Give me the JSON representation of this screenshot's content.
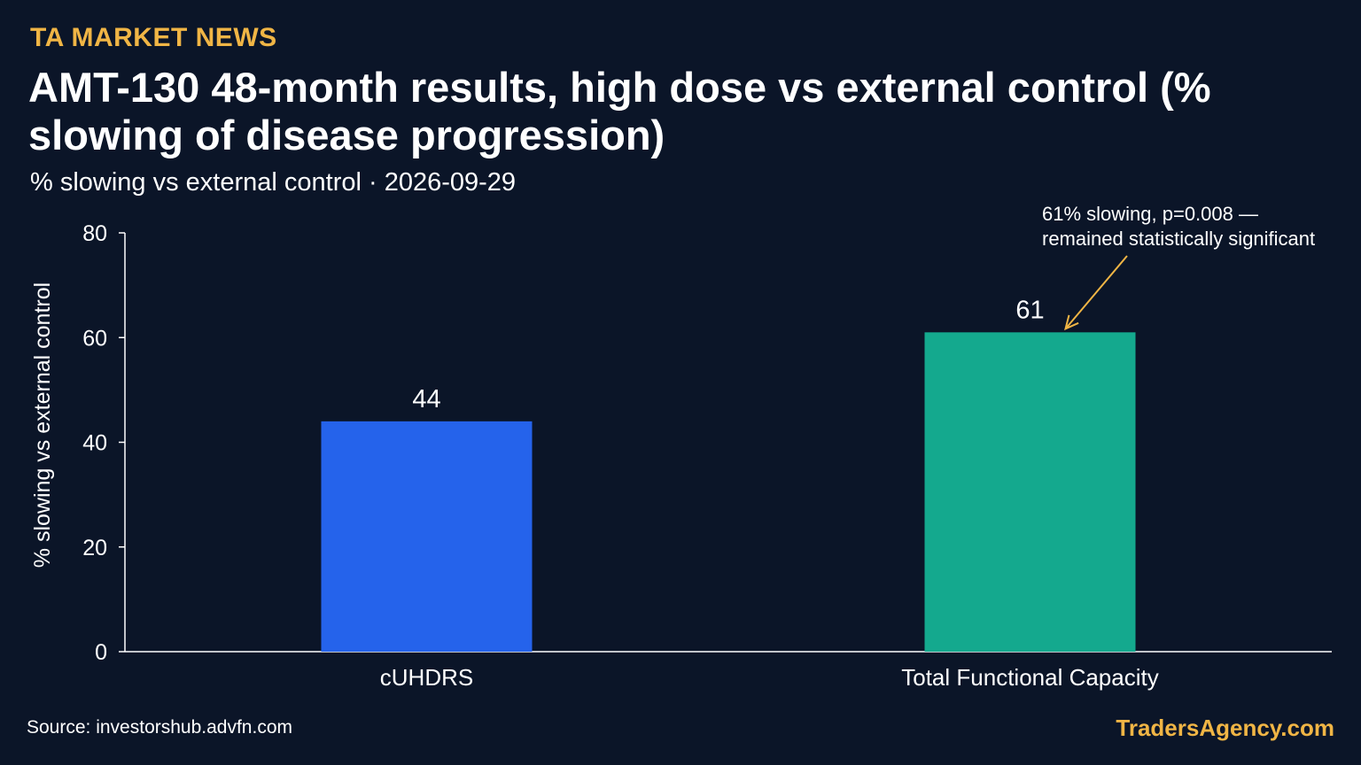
{
  "header": {
    "brand": "TA MARKET NEWS",
    "title": "AMT-130 48-month results, high dose vs external control (% slowing of disease progression)",
    "subtitle": "% slowing vs external control · 2026-09-29"
  },
  "footer": {
    "source": "Source: investorshub.advfn.com",
    "brand": "TradersAgency.com"
  },
  "colors": {
    "background": "#0b1528",
    "accent": "#f0b545",
    "bar_1": "#2563eb",
    "bar_2": "#14a98e",
    "axis": "#ffffff"
  },
  "chart_data": {
    "type": "bar",
    "categories": [
      "cUHDRS",
      "Total Functional Capacity"
    ],
    "values": [
      44,
      61
    ],
    "value_labels": [
      "44",
      "61"
    ],
    "ylabel": "% slowing vs external control",
    "ylim": [
      0,
      80
    ],
    "yticks": [
      0,
      20,
      40,
      60,
      80
    ],
    "grid": false,
    "annotation": {
      "target_category": "Total Functional Capacity",
      "lines": [
        "61% slowing, p=0.008 —",
        "remained statistically significant"
      ]
    }
  }
}
